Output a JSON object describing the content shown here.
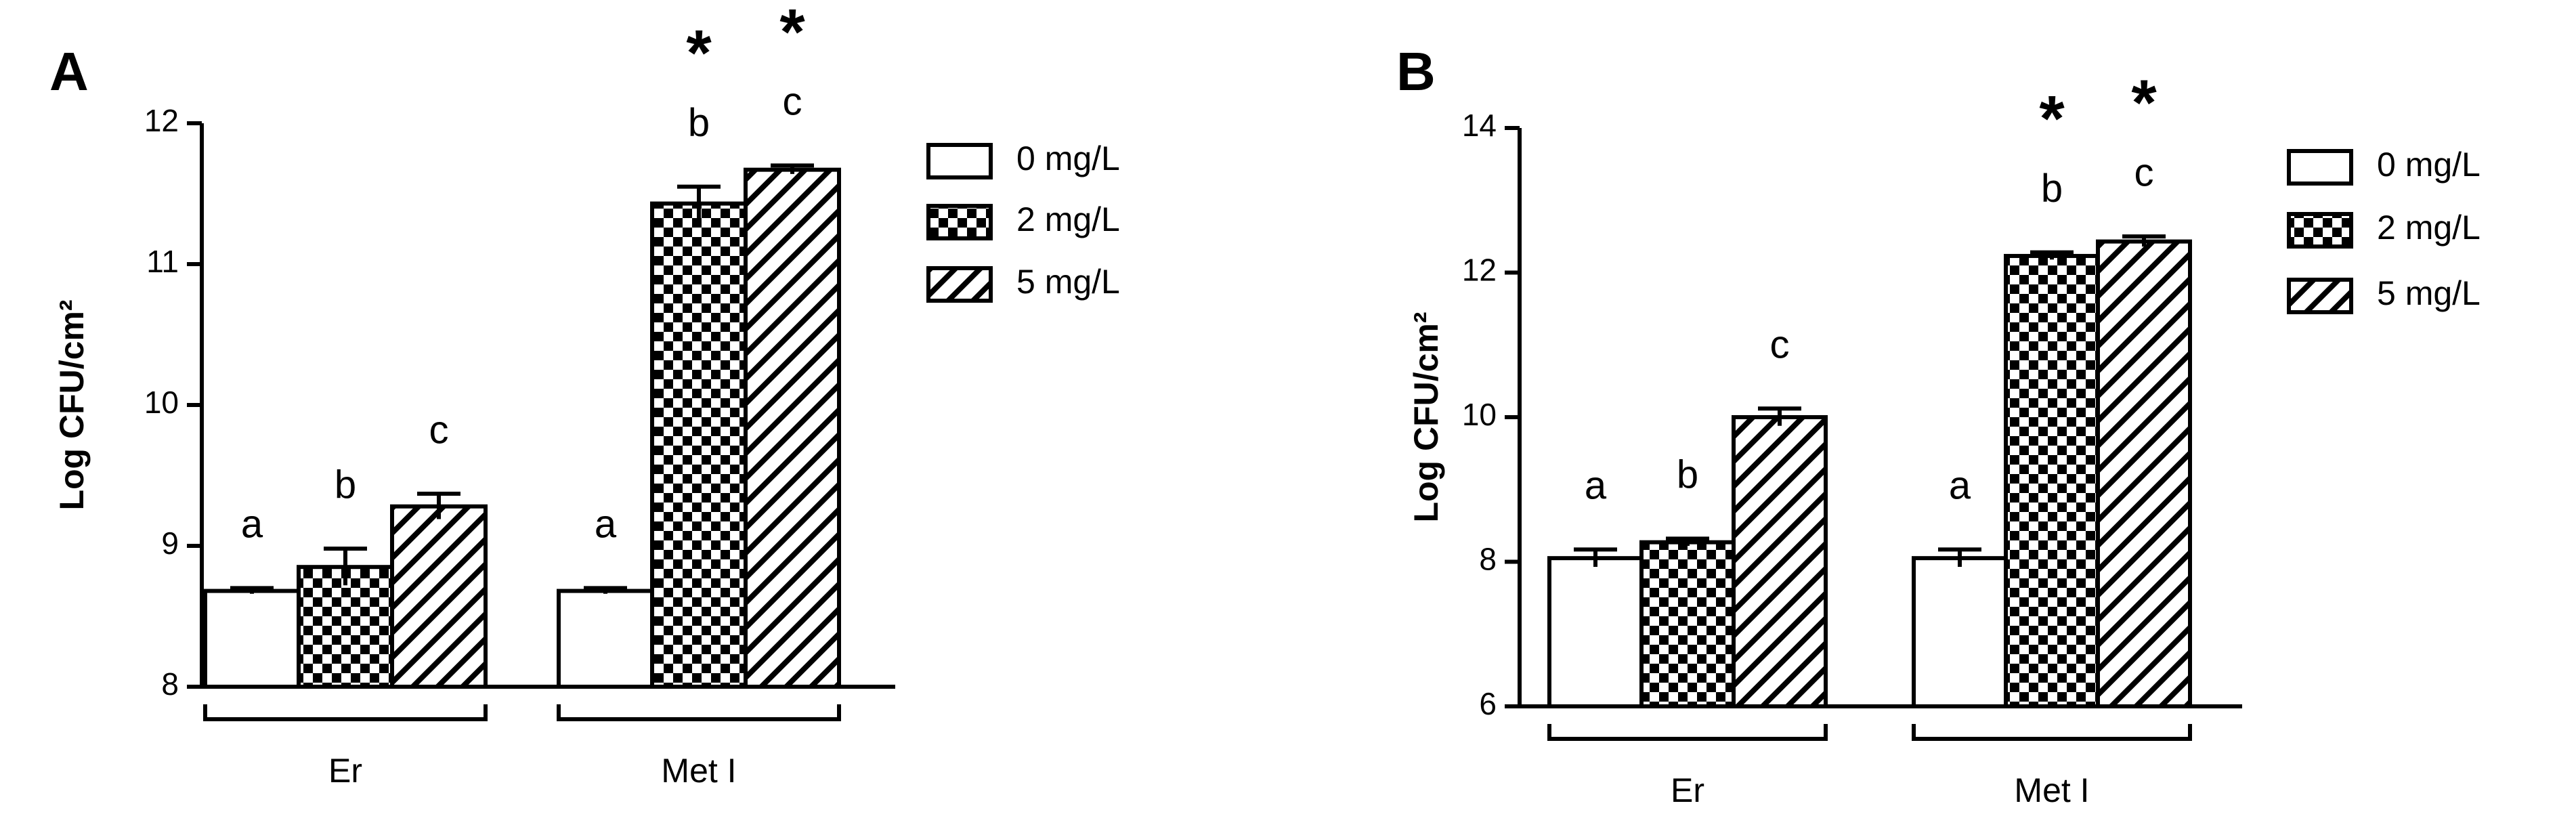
{
  "chart_data": [
    {
      "type": "bar",
      "title": "A",
      "y_label": "Log CFU/cm²",
      "categories": [
        "Er",
        "Met I"
      ],
      "series": [
        {
          "name": "0 mg/L",
          "color": "#000000",
          "pattern": "none",
          "values": [
            8.68,
            8.68
          ],
          "errors": [
            0.02,
            0.02
          ],
          "letters": [
            "a",
            "a"
          ],
          "stars": [
            null,
            null
          ]
        },
        {
          "name": "2 mg/L",
          "color": "#000000",
          "pattern": "checker",
          "values": [
            8.85,
            11.43
          ],
          "errors": [
            0.13,
            0.12
          ],
          "letters": [
            "b",
            "b"
          ],
          "stars": [
            null,
            "*"
          ]
        },
        {
          "name": "5 mg/L",
          "color": "#000000",
          "pattern": "hatch",
          "values": [
            9.28,
            11.67
          ],
          "errors": [
            0.09,
            0.03
          ],
          "letters": [
            "c",
            "c"
          ],
          "stars": [
            null,
            "*"
          ]
        }
      ],
      "ylim": [
        8,
        12
      ],
      "yticks": [
        8,
        9,
        10,
        11,
        12
      ],
      "grid": false,
      "legend": "right"
    },
    {
      "type": "bar",
      "title": "B",
      "y_label": "Log CFU/cm²",
      "categories": [
        "Er",
        "Met I"
      ],
      "series": [
        {
          "name": "0 mg/L",
          "color": "#000000",
          "pattern": "none",
          "values": [
            8.05,
            8.05
          ],
          "errors": [
            0.12,
            0.12
          ],
          "letters": [
            "a",
            "a"
          ],
          "stars": [
            null,
            null
          ]
        },
        {
          "name": "2 mg/L",
          "color": "#000000",
          "pattern": "checker",
          "values": [
            8.27,
            12.23
          ],
          "errors": [
            0.05,
            0.05
          ],
          "letters": [
            "b",
            "b"
          ],
          "stars": [
            null,
            "*"
          ]
        },
        {
          "name": "5 mg/L",
          "color": "#000000",
          "pattern": "hatch",
          "values": [
            10.0,
            12.43
          ],
          "errors": [
            0.12,
            0.07
          ],
          "letters": [
            "c",
            "c"
          ],
          "stars": [
            null,
            "*"
          ]
        }
      ],
      "ylim": [
        6,
        14
      ],
      "yticks": [
        6,
        8,
        10,
        12,
        14
      ],
      "grid": false,
      "legend": "right"
    }
  ]
}
